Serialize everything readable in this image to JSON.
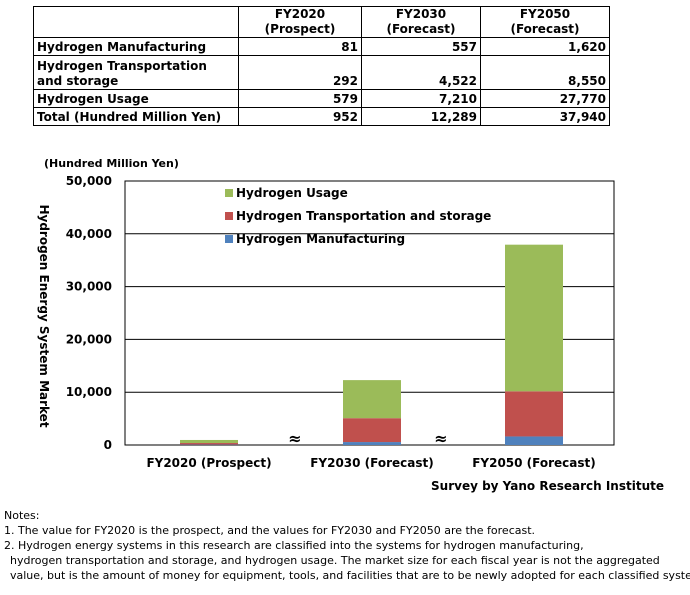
{
  "table": {
    "headers": [
      "",
      "FY2020 (Prospect)",
      "FY2030 (Forecast)",
      "FY2050 (Forecast)"
    ],
    "rows": [
      {
        "label": "Hydrogen Manufacturing",
        "values": [
          "81",
          "557",
          "1,620"
        ]
      },
      {
        "label": "Hydrogen Transportation and storage",
        "values": [
          "292",
          "4,522",
          "8,550"
        ]
      },
      {
        "label": "Hydrogen Usage",
        "values": [
          "579",
          "7,210",
          "27,770"
        ]
      },
      {
        "label": "Total (Hundred Million Yen)",
        "values": [
          "952",
          "12,289",
          "37,940"
        ]
      }
    ]
  },
  "chart_data": {
    "type": "bar",
    "stacked": true,
    "unit_label": "(Hundred Million Yen)",
    "ylabel": "Hydrogen Energy System Market",
    "categories": [
      "FY2020 (Prospect)",
      "FY2030 (Forecast)",
      "FY2050 (Forecast)"
    ],
    "series": [
      {
        "name": "Hydrogen Manufacturing",
        "color": "#4f81bd",
        "values": [
          81,
          557,
          1620
        ]
      },
      {
        "name": "Hydrogen Transportation and storage",
        "color": "#c0504d",
        "values": [
          292,
          4522,
          8550
        ]
      },
      {
        "name": "Hydrogen Usage",
        "color": "#9bbb59",
        "values": [
          579,
          7210,
          27770
        ]
      }
    ],
    "ylim": [
      0,
      50000
    ],
    "yticks": [
      "0",
      "10,000",
      "20,000",
      "30,000",
      "40,000",
      "50,000"
    ],
    "grid": true,
    "legend_placement": "top-left",
    "break_marks": "≈",
    "source": "Survey by Yano Research Institute"
  },
  "notes": {
    "heading": "Notes:",
    "items": [
      "1. The value for FY2020 is the prospect, and the values for FY2030 and FY2050 are the forecast.",
      "2. Hydrogen energy systems in this research are classified into the systems for hydrogen manufacturing,",
      "hydrogen transportation and storage, and hydrogen usage. The market size for each fiscal year is not the aggregated",
      "value, but is the amount of money for equipment, tools, and facilities that are to be newly adopted for each classified systems."
    ]
  }
}
